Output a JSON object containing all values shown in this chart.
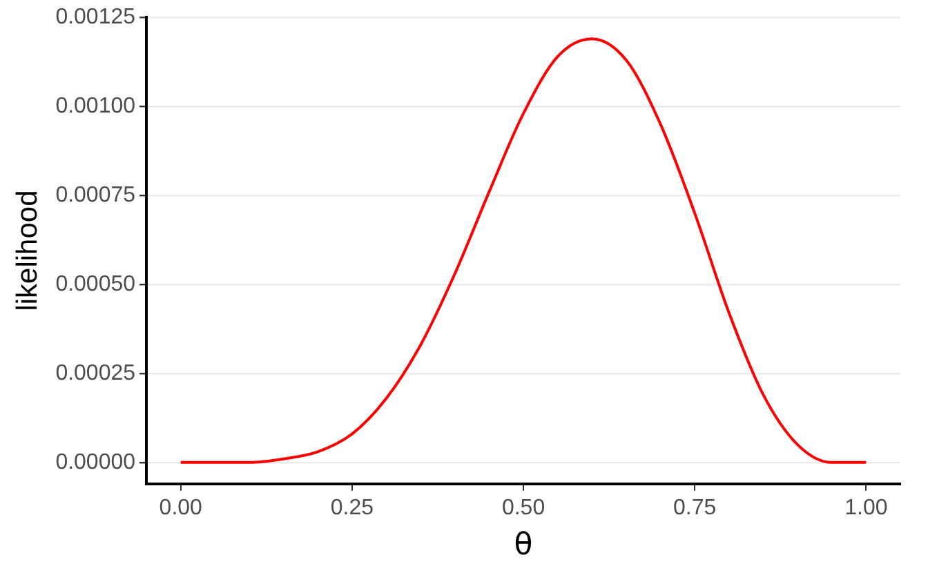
{
  "chart_data": {
    "type": "line",
    "xlabel": "θ",
    "ylabel": "likelihood",
    "x": [
      0,
      0.05,
      0.1,
      0.15,
      0.2,
      0.25,
      0.3,
      0.35,
      0.4,
      0.45,
      0.5,
      0.55,
      0.6,
      0.65,
      0.7,
      0.75,
      0.8,
      0.85,
      0.9,
      0.95,
      1
    ],
    "series": [
      {
        "color": "#ff0000",
        "values": [
          0,
          0,
          0,
          1e-05,
          3e-05,
          8e-05,
          0.00018,
          0.00033,
          0.00053,
          0.00076,
          0.00098,
          0.00114,
          0.00119,
          0.00113,
          0.00095,
          0.0007,
          0.00042,
          0.00019,
          5e-05,
          0,
          0
        ]
      }
    ],
    "xlim": [
      -0.05,
      1.05
    ],
    "ylim": [
      -6e-05,
      0.00125
    ],
    "xticks": [
      {
        "value": 0,
        "label": "0.00"
      },
      {
        "value": 0.25,
        "label": "0.25"
      },
      {
        "value": 0.5,
        "label": "0.50"
      },
      {
        "value": 0.75,
        "label": "0.75"
      },
      {
        "value": 1,
        "label": "1.00"
      }
    ],
    "yticks": [
      {
        "value": 0,
        "label": "0.00000"
      },
      {
        "value": 0.00025,
        "label": "0.00025"
      },
      {
        "value": 0.0005,
        "label": "0.00050"
      },
      {
        "value": 0.00075,
        "label": "0.00075"
      },
      {
        "value": 0.001,
        "label": "0.00100"
      },
      {
        "value": 0.00125,
        "label": "0.00125"
      }
    ],
    "grid": "y",
    "legend": false,
    "marker": "none",
    "line_style": "solid"
  }
}
